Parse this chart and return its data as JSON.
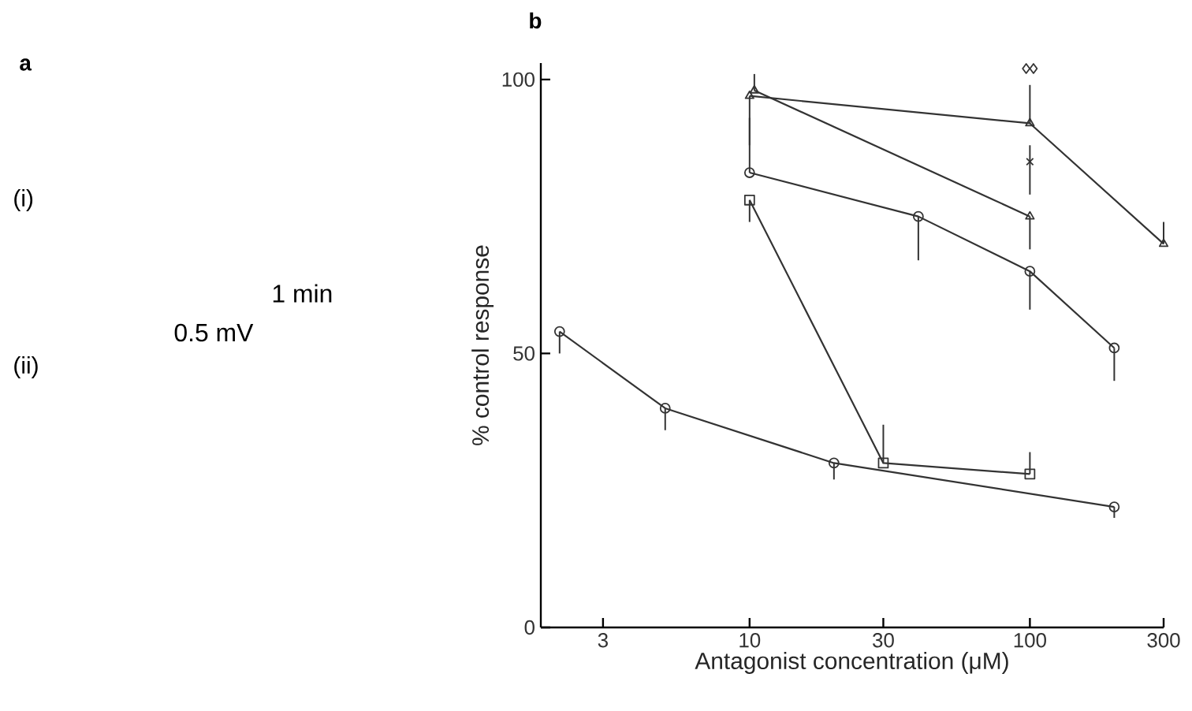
{
  "chart_data": {
    "type": "line",
    "xlabel": "Antagonist concentration (μM)",
    "ylabel": "% control response",
    "log": "x",
    "xlim": [
      1.8,
      300
    ],
    "xticks": [
      3,
      10,
      30,
      100,
      300
    ],
    "ylim": [
      0,
      103
    ],
    "yticks": [
      0,
      50,
      100
    ],
    "grid": false,
    "annotations": [
      "a",
      "(i)",
      "(ii)",
      "1 min",
      "0.5 mV",
      "b"
    ],
    "series": [
      {
        "color": "#333333",
        "marker": "circle",
        "x": [
          2.1,
          5,
          20,
          200
        ],
        "values": [
          54,
          40,
          30,
          22
        ],
        "errors": [
          [
            50,
            54
          ],
          [
            36,
            40
          ],
          [
            27,
            30
          ],
          [
            20,
            22
          ]
        ]
      },
      {
        "color": "#333333",
        "marker": "square",
        "x": [
          10,
          30,
          100
        ],
        "values": [
          78,
          30,
          28
        ],
        "errors": [
          [
            74,
            78
          ],
          [
            30,
            37
          ],
          [
            28,
            32
          ]
        ]
      },
      {
        "color": "#333333",
        "marker": "circle",
        "x": [
          10,
          40,
          100,
          200
        ],
        "values": [
          83,
          75,
          65,
          51
        ],
        "errors": [
          [
            83,
            93
          ],
          [
            67,
            75
          ],
          [
            58,
            65
          ],
          [
            45,
            51
          ]
        ]
      },
      {
        "color": "#333333",
        "marker": "triangle",
        "x": [
          10.4,
          100
        ],
        "values": [
          98,
          75
        ],
        "errors": [
          [
            98,
            101
          ],
          [
            69,
            75
          ]
        ]
      },
      {
        "color": "#333333",
        "marker": "triangle",
        "x": [
          10,
          100,
          300
        ],
        "values": [
          97,
          92,
          70
        ],
        "errors": [
          [
            88,
            97
          ],
          [
            92,
            99
          ],
          [
            70,
            74
          ]
        ]
      },
      {
        "type": "scatter",
        "color": "#333333",
        "marker": "cross",
        "x": [
          100
        ],
        "values": [
          85
        ],
        "errors": [
          [
            79,
            88
          ]
        ]
      },
      {
        "type": "scatter",
        "color": "#333333",
        "marker": "diamond",
        "x": [
          97
        ],
        "values": [
          102
        ]
      },
      {
        "type": "scatter",
        "color": "#333333",
        "marker": "diamond",
        "x": [
          103
        ],
        "values": [
          102
        ]
      }
    ]
  }
}
